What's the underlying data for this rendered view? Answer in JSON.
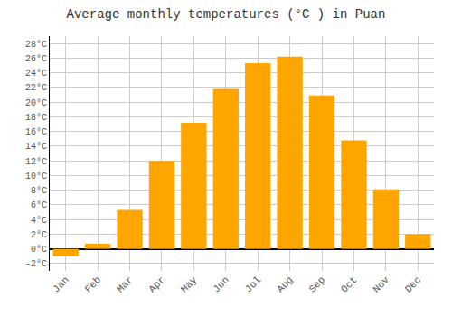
{
  "chart_data": {
    "type": "bar",
    "title": "Average monthly temperatures (°C ) in Puan",
    "categories": [
      "Jan",
      "Feb",
      "Mar",
      "Apr",
      "May",
      "Jun",
      "Jul",
      "Aug",
      "Sep",
      "Oct",
      "Nov",
      "Dec"
    ],
    "values": [
      -1,
      0.7,
      5.3,
      12,
      17.2,
      21.8,
      25.3,
      26.2,
      20.9,
      14.8,
      8.1,
      2.0
    ],
    "color": "#FFA500",
    "ylim": [
      -3,
      29
    ],
    "yticks": [
      {
        "value": -2,
        "label": "-2°C"
      },
      {
        "value": 0,
        "label": "0°C"
      },
      {
        "value": 2,
        "label": "2°C"
      },
      {
        "value": 4,
        "label": "4°C"
      },
      {
        "value": 6,
        "label": "6°C"
      },
      {
        "value": 8,
        "label": "8°C"
      },
      {
        "value": 10,
        "label": "10°C"
      },
      {
        "value": 12,
        "label": "12°C"
      },
      {
        "value": 14,
        "label": "14°C"
      },
      {
        "value": 16,
        "label": "16°C"
      },
      {
        "value": 18,
        "label": "18°C"
      },
      {
        "value": 20,
        "label": "20°C"
      },
      {
        "value": 22,
        "label": "22°C"
      },
      {
        "value": 24,
        "label": "24°C"
      },
      {
        "value": 26,
        "label": "26°C"
      },
      {
        "value": 28,
        "label": "28°C"
      }
    ],
    "grid": true
  }
}
